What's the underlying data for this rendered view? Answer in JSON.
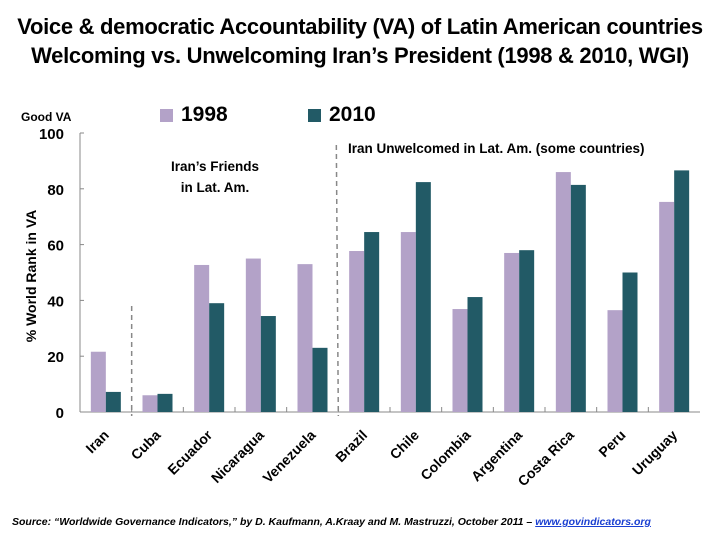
{
  "chart_data": {
    "type": "bar",
    "title": "Voice & democratic Accountability (VA) of Latin American countries",
    "subtitle": "Welcoming vs. Unwelcoming Iran’s President (1998 & 2010, WGI)",
    "xlabel": "",
    "ylabel": "% World Rank in VA",
    "y_top_note": "Good VA",
    "ylim": [
      0,
      100
    ],
    "yticks": [
      0,
      20,
      40,
      60,
      80,
      100
    ],
    "grid": false,
    "legend_position": "top",
    "categories": [
      "Iran",
      "Cuba",
      "Ecuador",
      "Nicaragua",
      "Venezuela",
      "Brazil",
      "Chile",
      "Colombia",
      "Argentina",
      "Costa Rica",
      "Peru",
      "Uruguay"
    ],
    "series": [
      {
        "name": "1998",
        "color": "#b3a2c8",
        "values": [
          21.6,
          6.0,
          52.7,
          55.0,
          53.0,
          57.7,
          64.5,
          36.9,
          57.0,
          86.0,
          36.5,
          75.3
        ]
      },
      {
        "name": "2010",
        "color": "#225a66",
        "values": [
          7.2,
          6.5,
          39.0,
          34.4,
          23.0,
          64.5,
          82.4,
          41.2,
          58.0,
          81.4,
          50.0,
          86.6
        ]
      }
    ],
    "annotations": [
      {
        "text_lines": [
          "Iran’s Friends",
          "in Lat. Am."
        ],
        "group": "Cuba–Venezuela"
      },
      {
        "text": "Iran Unwelcomed in Lat. Am. (some countries)",
        "group": "Brazil–Uruguay"
      }
    ],
    "separators": [
      "between Iran and Cuba",
      "between Venezuela and Brazil"
    ]
  },
  "source": {
    "text": "Source: “Worldwide Governance Indicators,” by D. Kaufmann, A.Kraay and M. Mastruzzi, October 2011 – ",
    "link": "www.govindicators.org"
  }
}
